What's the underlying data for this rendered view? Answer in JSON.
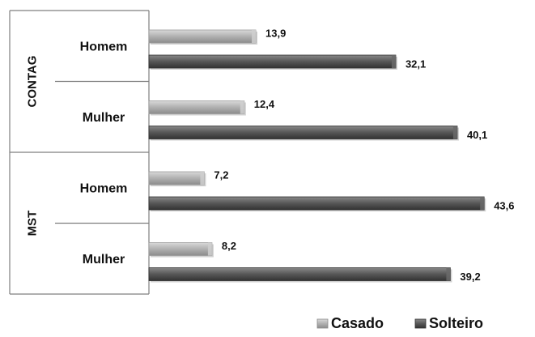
{
  "chart_data": {
    "type": "bar",
    "orientation": "horizontal",
    "groups": [
      {
        "label": "CONTAG",
        "categories": [
          "Homem",
          "Mulher"
        ]
      },
      {
        "label": "MST",
        "categories": [
          "Homem",
          "Mulher"
        ]
      }
    ],
    "series": [
      {
        "name": "Casado",
        "values": [
          13.9,
          12.4,
          7.2,
          8.2
        ],
        "labels": [
          "13,9",
          "12,4",
          "7,2",
          "8,2"
        ],
        "color": "#b3b3b3"
      },
      {
        "name": "Solteiro",
        "values": [
          32.1,
          40.1,
          43.6,
          39.2
        ],
        "labels": [
          "32,1",
          "40,1",
          "43,6",
          "39,2"
        ],
        "color": "#555555"
      }
    ],
    "legend": {
      "position": "bottom-right",
      "items": [
        "Casado",
        "Solteiro"
      ]
    },
    "xlim": [
      0,
      45
    ],
    "grid": false,
    "title": "",
    "xlabel": "",
    "ylabel": ""
  }
}
